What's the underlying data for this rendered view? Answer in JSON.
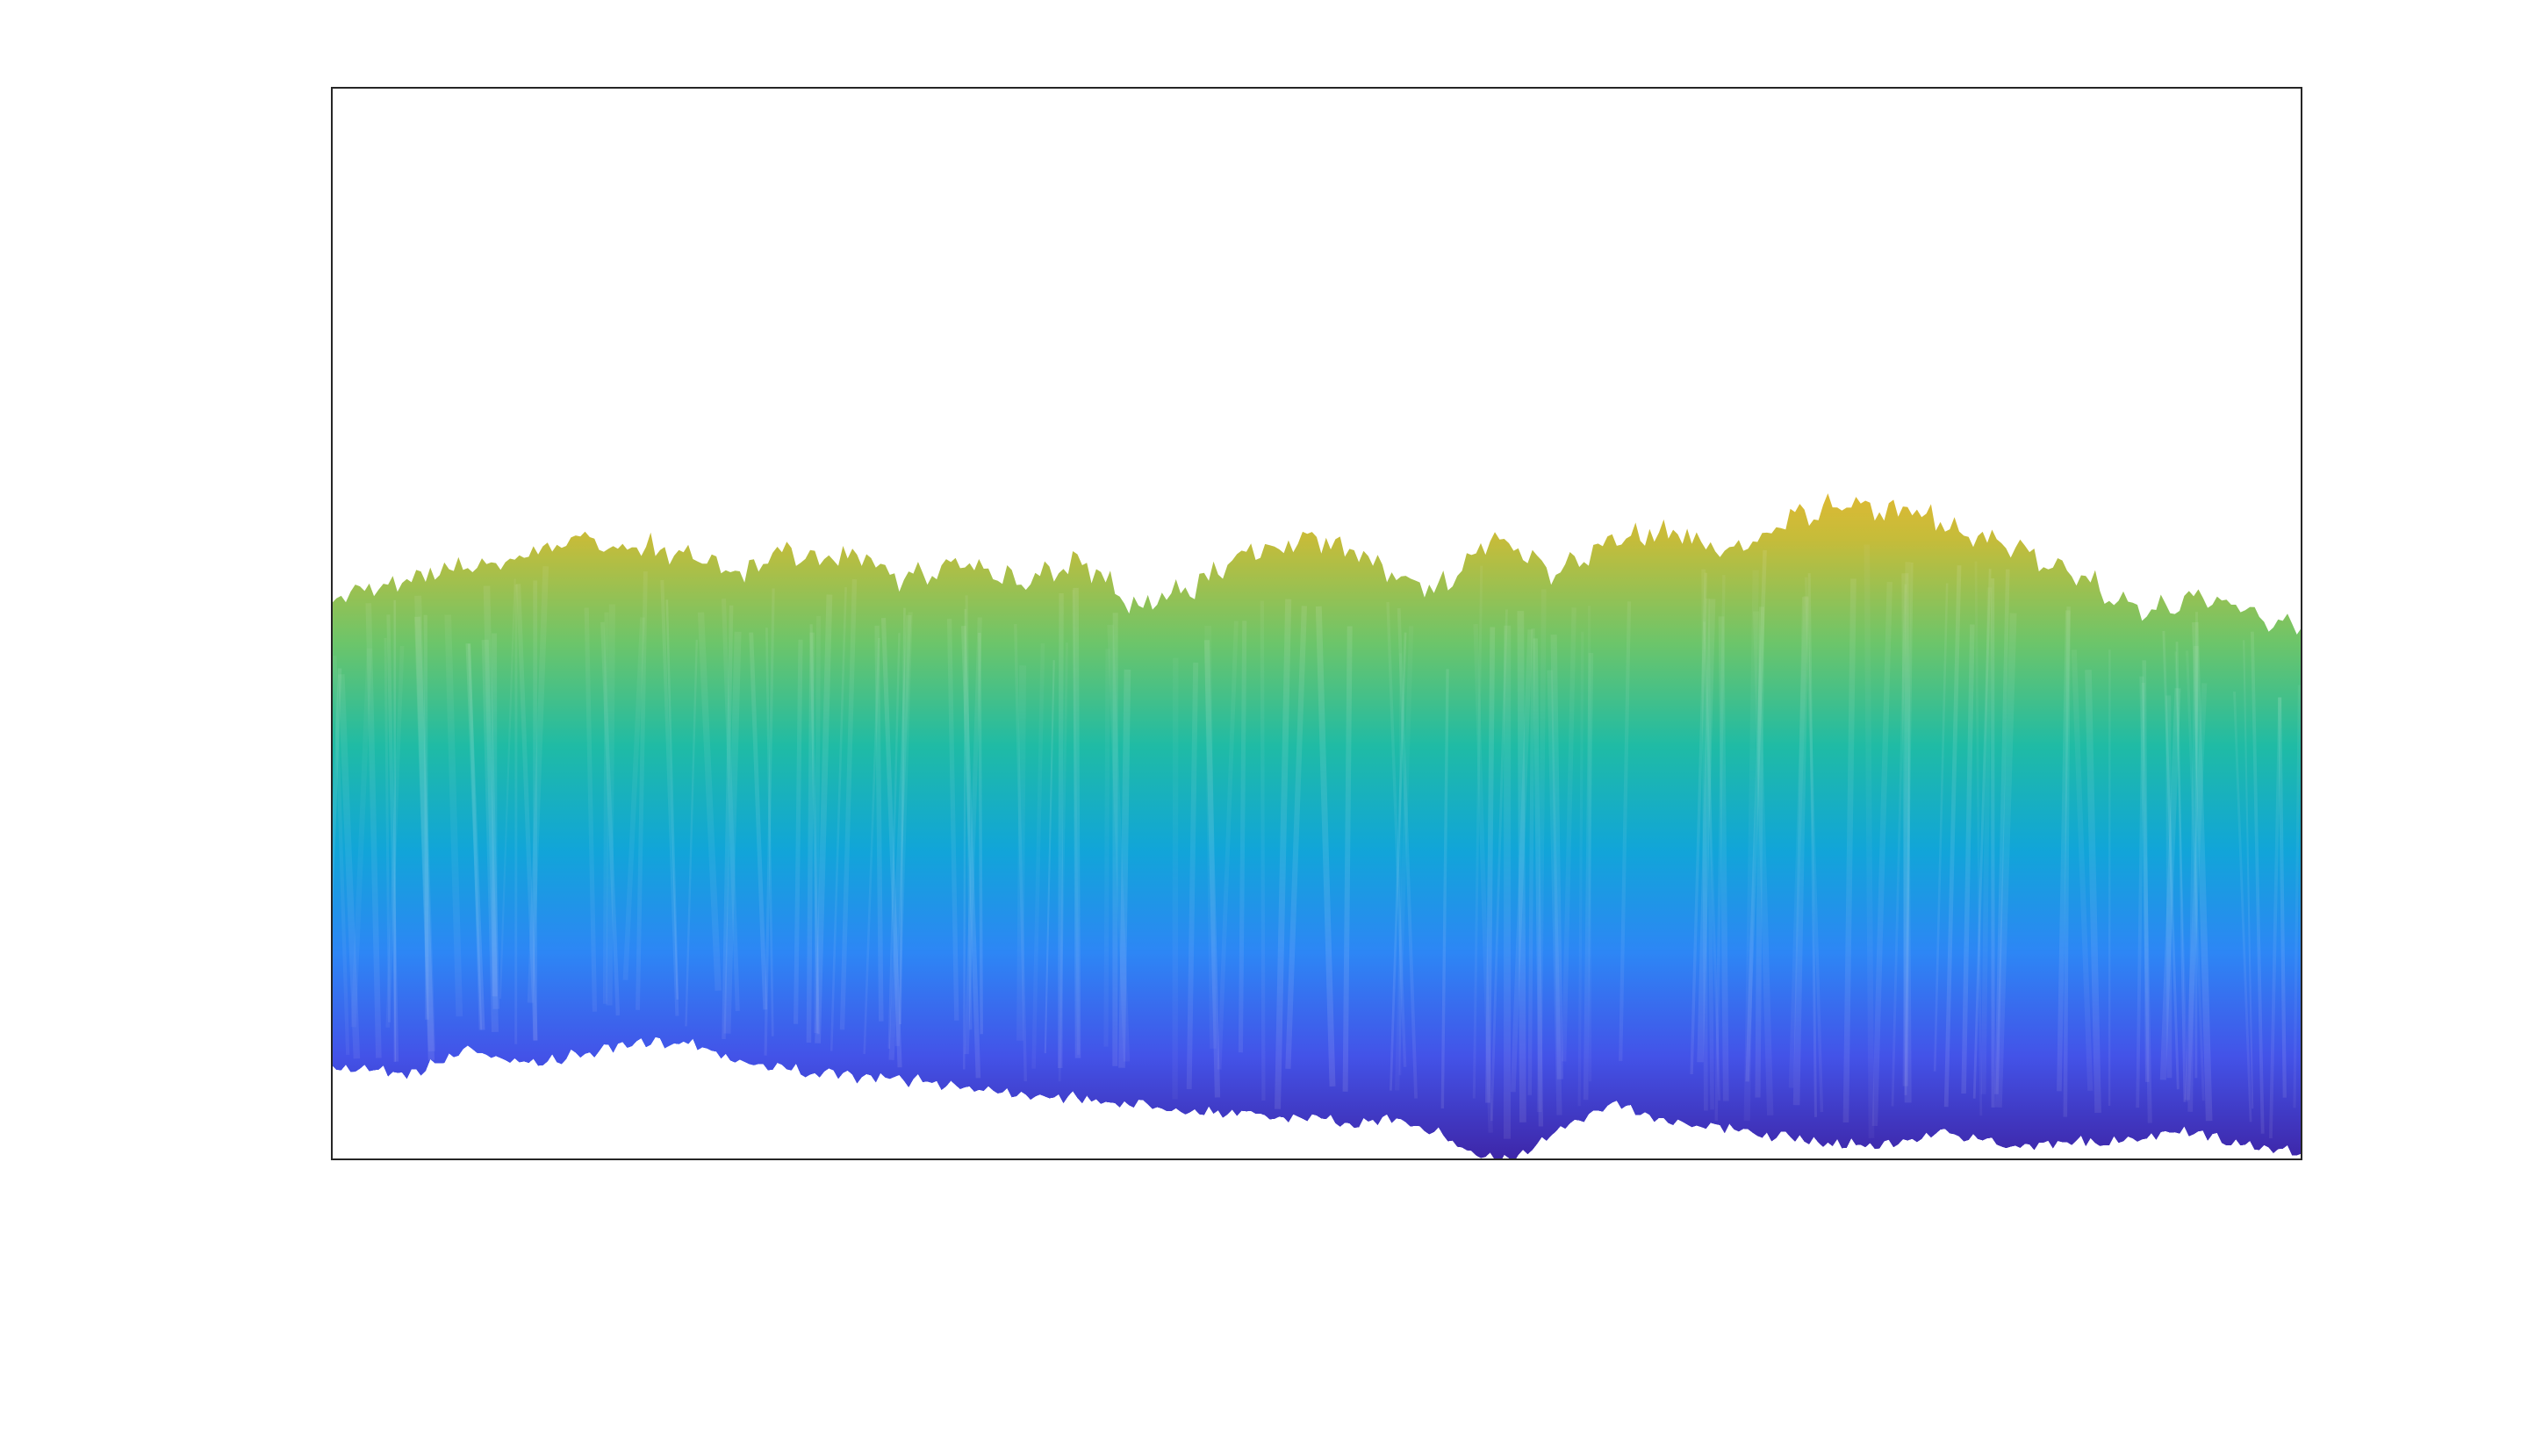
{
  "figure": {
    "background": "#ffffff"
  },
  "chart_data": {
    "type": "surface",
    "title": "",
    "xlabel": "",
    "ylabel": "",
    "zlabel": "",
    "axes_visible": false,
    "axes_box_visible": true,
    "grid": false,
    "colormap": "parula",
    "colormap_stops": [
      "#3e26a8",
      "#4353e8",
      "#2d86f5",
      "#11a5d8",
      "#1fbba5",
      "#6cc56a",
      "#c5bc3a",
      "#fbb62b",
      "#f9fb15"
    ],
    "front_edge_profile": [
      [
        0.0,
        0.38
      ],
      [
        0.02,
        0.39
      ],
      [
        0.04,
        0.36
      ],
      [
        0.07,
        0.47
      ],
      [
        0.1,
        0.4
      ],
      [
        0.13,
        0.45
      ],
      [
        0.16,
        0.49
      ],
      [
        0.18,
        0.5
      ],
      [
        0.21,
        0.41
      ],
      [
        0.25,
        0.36
      ],
      [
        0.3,
        0.33
      ],
      [
        0.35,
        0.28
      ],
      [
        0.4,
        0.24
      ],
      [
        0.45,
        0.2
      ],
      [
        0.5,
        0.17
      ],
      [
        0.52,
        0.15
      ],
      [
        0.54,
        0.18
      ],
      [
        0.56,
        0.12
      ],
      [
        0.58,
        0.02
      ],
      [
        0.6,
        0.0
      ],
      [
        0.62,
        0.1
      ],
      [
        0.65,
        0.25
      ],
      [
        0.67,
        0.18
      ],
      [
        0.7,
        0.14
      ],
      [
        0.73,
        0.1
      ],
      [
        0.76,
        0.07
      ],
      [
        0.79,
        0.06
      ],
      [
        0.82,
        0.12
      ],
      [
        0.85,
        0.05
      ],
      [
        0.88,
        0.08
      ],
      [
        0.91,
        0.07
      ],
      [
        0.94,
        0.12
      ],
      [
        0.97,
        0.06
      ],
      [
        1.0,
        0.03
      ]
    ],
    "back_ridge_profile": [
      [
        0.0,
        0.85
      ],
      [
        0.03,
        0.88
      ],
      [
        0.06,
        0.91
      ],
      [
        0.09,
        0.93
      ],
      [
        0.12,
        0.98
      ],
      [
        0.15,
        0.97
      ],
      [
        0.18,
        0.95
      ],
      [
        0.21,
        0.9
      ],
      [
        0.23,
        0.96
      ],
      [
        0.25,
        0.93
      ],
      [
        0.27,
        0.95
      ],
      [
        0.29,
        0.88
      ],
      [
        0.32,
        0.94
      ],
      [
        0.35,
        0.88
      ],
      [
        0.38,
        0.93
      ],
      [
        0.41,
        0.82
      ],
      [
        0.44,
        0.88
      ],
      [
        0.47,
        0.96
      ],
      [
        0.5,
        0.98
      ],
      [
        0.53,
        0.93
      ],
      [
        0.56,
        0.86
      ],
      [
        0.59,
        0.99
      ],
      [
        0.62,
        0.9
      ],
      [
        0.65,
        0.98
      ],
      [
        0.68,
        1.0
      ],
      [
        0.71,
        0.95
      ],
      [
        0.74,
        1.03
      ],
      [
        0.77,
        1.06
      ],
      [
        0.8,
        1.05
      ],
      [
        0.83,
        0.99
      ],
      [
        0.86,
        0.96
      ],
      [
        0.89,
        0.89
      ],
      [
        0.92,
        0.81
      ],
      [
        0.95,
        0.85
      ],
      [
        0.98,
        0.8
      ],
      [
        1.0,
        0.78
      ]
    ],
    "valley_minimum_x": 0.6
  }
}
